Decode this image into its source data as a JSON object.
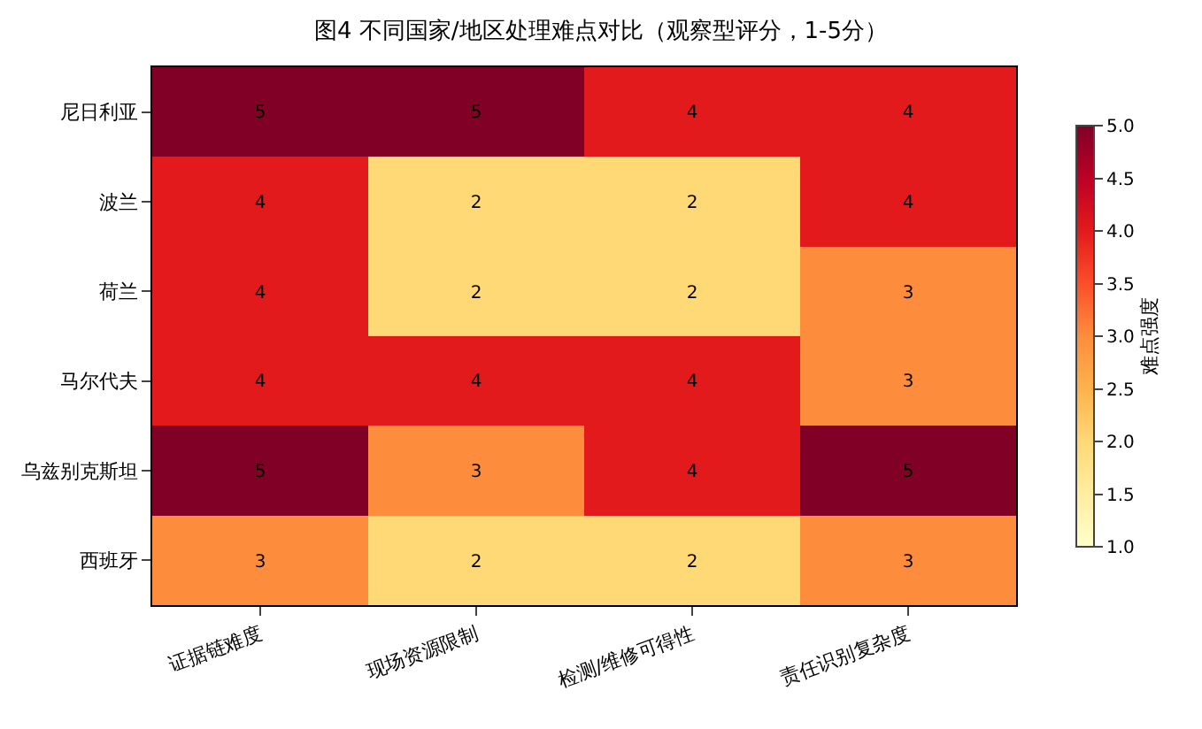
{
  "chart_data": {
    "type": "heatmap",
    "title": "图4 不同国家/地区处理难点对比（观察型评分，1-5分）",
    "categories": [
      "证据链难度",
      "现场资源限制",
      "检测/维修可得性",
      "责任识别复杂度"
    ],
    "y_categories": [
      "尼日利亚",
      "波兰",
      "荷兰",
      "马尔代夫",
      "乌兹别克斯坦",
      "西班牙"
    ],
    "cells": [
      [
        5,
        5,
        4,
        4
      ],
      [
        4,
        2,
        2,
        4
      ],
      [
        4,
        2,
        2,
        3
      ],
      [
        4,
        4,
        4,
        3
      ],
      [
        5,
        3,
        4,
        5
      ],
      [
        3,
        2,
        2,
        3
      ]
    ],
    "clabel": "难点强度",
    "clim": [
      1.0,
      5.0
    ],
    "cticks": [
      {
        "value": 1.0,
        "label": "1.0"
      },
      {
        "value": 1.5,
        "label": "1.5"
      },
      {
        "value": 2.0,
        "label": "2.0"
      },
      {
        "value": 2.5,
        "label": "2.5"
      },
      {
        "value": 3.0,
        "label": "3.0"
      },
      {
        "value": 3.5,
        "label": "3.5"
      },
      {
        "value": 4.0,
        "label": "4.0"
      },
      {
        "value": 4.5,
        "label": "4.5"
      },
      {
        "value": 5.0,
        "label": "5.0"
      }
    ],
    "data_labels": true
  }
}
